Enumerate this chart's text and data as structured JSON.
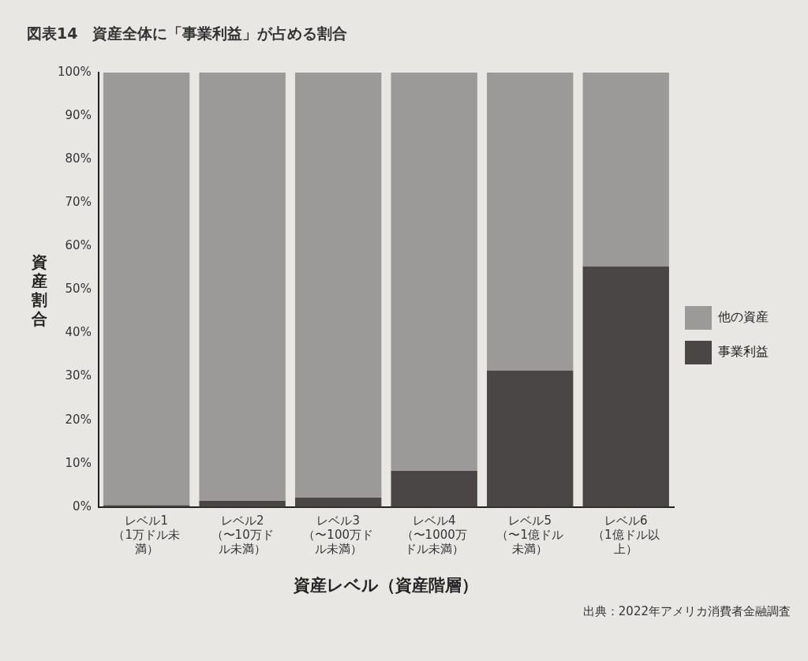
{
  "chart_data": {
    "type": "bar",
    "title": "図表14　資産全体に「事業利益」が占める割合",
    "xlabel": "資産レベル（資産階層）",
    "ylabel": "資産割合",
    "categories": [
      "レベル1（1万ドル未満）",
      "レベル2（〜10万ドル未満）",
      "レベル3（〜100万ドル未満）",
      "レベル4（〜1000万ドル未満）",
      "レベル5（〜1億ドル未満）",
      "レベル6（1億ドル以上）"
    ],
    "stacked": true,
    "series": [
      {
        "name": "事業利益",
        "color": "#4a4646",
        "values": [
          0.4,
          1.4,
          2.2,
          8.3,
          31.4,
          55.4
        ]
      },
      {
        "name": "他の資産",
        "color": "#9b9a99",
        "values": [
          99.6,
          98.6,
          97.8,
          91.7,
          68.6,
          44.6
        ]
      }
    ],
    "ylim": [
      0,
      100
    ],
    "yticks": [
      {
        "value": 0,
        "label": "0%"
      },
      {
        "value": 10,
        "label": "10%"
      },
      {
        "value": 20,
        "label": "20%"
      },
      {
        "value": 30,
        "label": "30%"
      },
      {
        "value": 40,
        "label": "40%"
      },
      {
        "value": 50,
        "label": "50%"
      },
      {
        "value": 60,
        "label": "60%"
      },
      {
        "value": 70,
        "label": "70%"
      },
      {
        "value": 80,
        "label": "80%"
      },
      {
        "value": 90,
        "label": "90%"
      },
      {
        "value": 100,
        "label": "100%"
      }
    ],
    "grid": false,
    "legend": "right",
    "annotations": [
      "出典：2022年アメリカ消費者金融調査"
    ]
  }
}
